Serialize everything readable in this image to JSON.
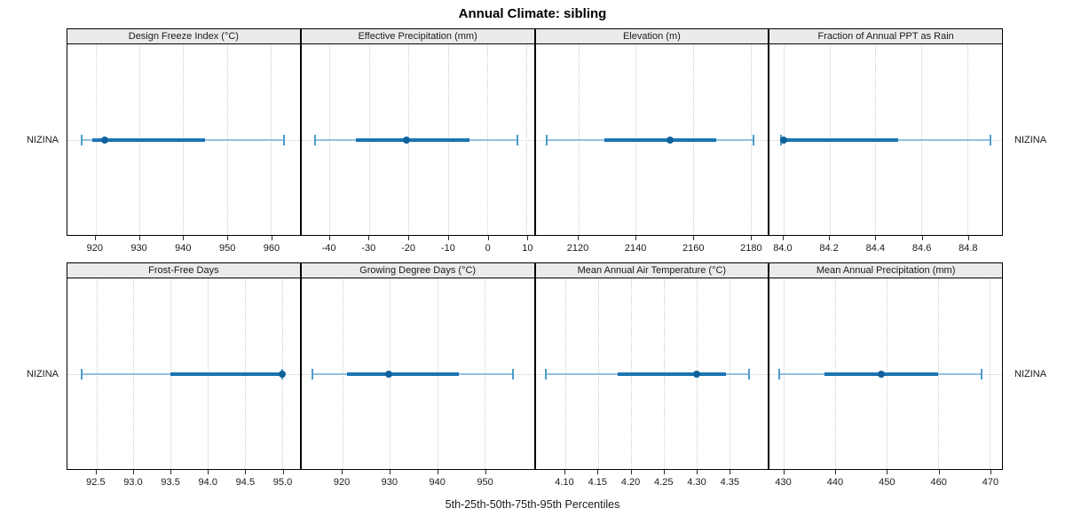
{
  "title": "Annual Climate: sibling",
  "caption": "5th-25th-50th-75th-95th Percentiles",
  "site_label": "NIZINA",
  "colors": {
    "median_dot": "#10629c",
    "box_25_75": "#1b75b2",
    "whisker_5_95": "#92c0e2",
    "whisker_cap": "#4d9bcb",
    "strip_bg": "#ebebeb",
    "gridline": "#cdcdcd",
    "panel_border": "#000000"
  },
  "chart_data": {
    "type": "dotplot-percentiles",
    "site": "NIZINA",
    "title": "Annual Climate: sibling",
    "xlabel": "5th-25th-50th-75th-95th Percentiles",
    "grid": "dotted",
    "layout": "2 rows x 4 columns of panels, site name on left and right",
    "panels": [
      {
        "row": 0,
        "col": 0,
        "title": "Design Freeze Index (°C)",
        "xlim": [
          913.6,
          966.6
        ],
        "tick_values": [
          920,
          930,
          940,
          950,
          960
        ],
        "tick_labels": [
          "920",
          "930",
          "940",
          "950",
          "960"
        ],
        "p5": 916.8,
        "p25": 919.2,
        "p50": 922.1,
        "p75": 945.0,
        "p95": 963.0
      },
      {
        "row": 0,
        "col": 1,
        "title": "Effective Precipitation (mm)",
        "xlim": [
          -47.1,
          11.8
        ],
        "tick_values": [
          -40,
          -30,
          -20,
          -10,
          0,
          10
        ],
        "tick_labels": [
          "-40",
          "-30",
          "-20",
          "-10",
          "0",
          "10"
        ],
        "p5": -43.6,
        "p25": -33.4,
        "p50": -20.4,
        "p75": -4.5,
        "p95": 7.6
      },
      {
        "row": 0,
        "col": 2,
        "title": "Elevation (m)",
        "xlim": [
          2105.1,
          2186.1
        ],
        "tick_values": [
          2120,
          2140,
          2160,
          2180
        ],
        "tick_labels": [
          "2120",
          "2140",
          "2160",
          "2180"
        ],
        "p5": 2109.0,
        "p25": 2129.0,
        "p50": 2152.0,
        "p75": 2168.0,
        "p95": 2181.0
      },
      {
        "row": 0,
        "col": 3,
        "title": "Fraction of Annual PPT as Rain",
        "xlim": [
          83.94,
          84.95
        ],
        "tick_values": [
          84.0,
          84.2,
          84.4,
          84.6,
          84.8
        ],
        "tick_labels": [
          "84.0",
          "84.2",
          "84.4",
          "84.6",
          "84.8"
        ],
        "p5": 83.99,
        "p25": 84.0,
        "p50": 84.0,
        "p75": 84.5,
        "p95": 84.9
      },
      {
        "row": 1,
        "col": 0,
        "title": "Frost-Free Days",
        "xlim": [
          92.11,
          95.24
        ],
        "tick_values": [
          92.5,
          93.0,
          93.5,
          94.0,
          94.5,
          95.0
        ],
        "tick_labels": [
          "92.5",
          "93.0",
          "93.5",
          "94.0",
          "94.5",
          "95.0"
        ],
        "p5": 92.3,
        "p25": 93.5,
        "p50": 95.0,
        "p75": 95.0,
        "p95": 95.0
      },
      {
        "row": 1,
        "col": 1,
        "title": "Growing Degree Days (°C)",
        "xlim": [
          911.4,
          960.4
        ],
        "tick_values": [
          920,
          930,
          940,
          950
        ],
        "tick_labels": [
          "920",
          "930",
          "940",
          "950"
        ],
        "p5": 913.6,
        "p25": 920.9,
        "p50": 929.7,
        "p75": 944.5,
        "p95": 956.0
      },
      {
        "row": 1,
        "col": 2,
        "title": "Mean Annual Air Temperature (°C)",
        "xlim": [
          4.055,
          4.409
        ],
        "tick_values": [
          4.1,
          4.15,
          4.2,
          4.25,
          4.3,
          4.35
        ],
        "tick_labels": [
          "4.10",
          "4.15",
          "4.20",
          "4.25",
          "4.30",
          "4.35"
        ],
        "p5": 4.07,
        "p25": 4.18,
        "p50": 4.3,
        "p75": 4.345,
        "p95": 4.38
      },
      {
        "row": 1,
        "col": 3,
        "title": "Mean Annual Precipitation (mm)",
        "xlim": [
          427.2,
          472.4
        ],
        "tick_values": [
          430,
          440,
          450,
          460,
          470
        ],
        "tick_labels": [
          "430",
          "440",
          "450",
          "460",
          "470"
        ],
        "p5": 429.1,
        "p25": 437.9,
        "p50": 449.0,
        "p75": 460.0,
        "p95": 468.5
      }
    ]
  }
}
